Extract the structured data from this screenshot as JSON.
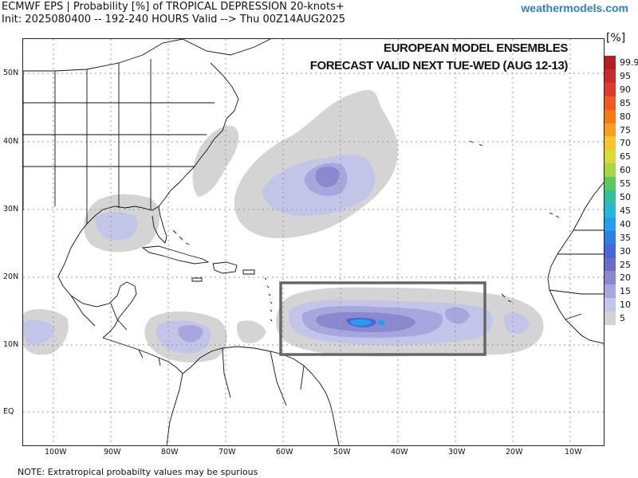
{
  "header": {
    "title_line1": "ECMWF EPS | Probability [%] of TROPICAL DEPRESSION 20-knots+",
    "title_line2": "Init: 2025080400 -- 192-240 HOURS Valid --> Thu 00Z14AUG2025",
    "brand": "weathermodels.com"
  },
  "overlay": {
    "line1": "EUROPEAN MODEL ENSEMBLES",
    "line2": "FORECAST VALID NEXT TUE-WED (AUG 12-13)"
  },
  "colorbar": {
    "unit": "[%]",
    "levels": [
      {
        "label": "99.9",
        "color": "#b02020"
      },
      {
        "label": "95",
        "color": "#c92a2a"
      },
      {
        "label": "90",
        "color": "#dd3a2a"
      },
      {
        "label": "85",
        "color": "#ee5a20"
      },
      {
        "label": "80",
        "color": "#f57c10"
      },
      {
        "label": "75",
        "color": "#f9a020"
      },
      {
        "label": "70",
        "color": "#f6c52a"
      },
      {
        "label": "65",
        "color": "#d8dd30"
      },
      {
        "label": "60",
        "color": "#a8d840"
      },
      {
        "label": "55",
        "color": "#5cc85a"
      },
      {
        "label": "50",
        "color": "#2ec0a0"
      },
      {
        "label": "45",
        "color": "#22b8d8"
      },
      {
        "label": "40",
        "color": "#22a0ee"
      },
      {
        "label": "35",
        "color": "#2d7fe8"
      },
      {
        "label": "30",
        "color": "#4b64d8"
      },
      {
        "label": "25",
        "color": "#6a6cc8"
      },
      {
        "label": "20",
        "color": "#8b88cf"
      },
      {
        "label": "15",
        "color": "#a7a7dd"
      },
      {
        "label": "10",
        "color": "#c3c5e8"
      },
      {
        "label": "5",
        "color": "#d4d4d4"
      }
    ]
  },
  "axes": {
    "lat_labels": [
      "50N",
      "40N",
      "30N",
      "20N",
      "10N",
      "EQ"
    ],
    "lon_labels": [
      "100W",
      "90W",
      "80W",
      "70W",
      "60W",
      "50W",
      "40W",
      "30W",
      "20W",
      "10W"
    ]
  },
  "footer": {
    "note": "NOTE: Extratropical probabilty values may be spurious"
  },
  "colors": {
    "highlight_box": "#666666",
    "land_outline": "#111111",
    "grid": "#999999"
  }
}
